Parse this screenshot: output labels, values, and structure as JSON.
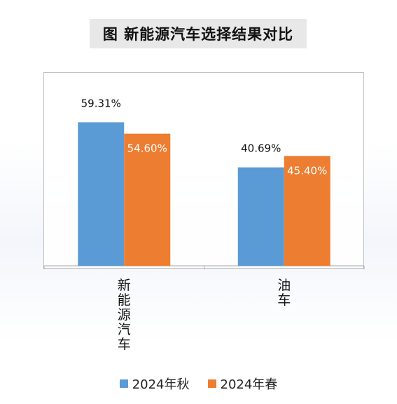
{
  "title": "图  新能源汽车选择结果对比",
  "chart_data": {
    "type": "bar",
    "categories": [
      "新能源汽车",
      "油车"
    ],
    "series": [
      {
        "name": "2024年秋",
        "values": [
          59.31,
          40.69
        ],
        "labels": [
          "59.31%",
          "40.69%"
        ],
        "color": "#5b9bd5"
      },
      {
        "name": "2024年春",
        "values": [
          54.6,
          45.4
        ],
        "labels": [
          "54.60%",
          "45.40%"
        ],
        "color": "#ed7d31"
      }
    ],
    "ylim": [
      0,
      80
    ],
    "grid": false,
    "legend_position": "bottom"
  }
}
